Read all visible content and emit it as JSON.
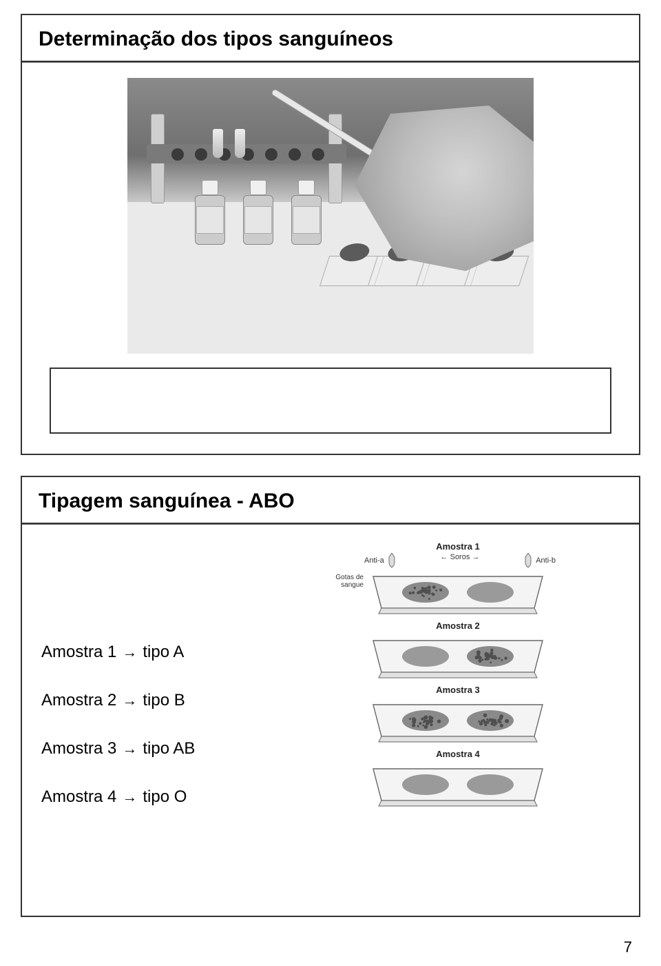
{
  "page_number": "7",
  "slide1": {
    "title": "Determinação dos tipos sanguíneos"
  },
  "slide2": {
    "title": "Tipagem sanguínea - ABO",
    "left_items": [
      {
        "sample": "Amostra 1",
        "type": "tipo A"
      },
      {
        "sample": "Amostra 2",
        "type": "tipo B"
      },
      {
        "sample": "Amostra 3",
        "type": "tipo AB"
      },
      {
        "sample": "Amostra 4",
        "type": "tipo O"
      }
    ],
    "arrow_glyph": "→",
    "diagram": {
      "header_labels": {
        "left": "Anti-a",
        "mid": "Soros",
        "right": "Anti-b"
      },
      "side_label": "Gotas de sangue",
      "samples": [
        {
          "label": "Amostra 1",
          "show_header": true,
          "dish_left": {
            "agglutinated": true
          },
          "dish_right": {
            "agglutinated": false
          }
        },
        {
          "label": "Amostra 2",
          "show_header": false,
          "dish_left": {
            "agglutinated": false
          },
          "dish_right": {
            "agglutinated": true
          }
        },
        {
          "label": "Amostra 3",
          "show_header": false,
          "dish_left": {
            "agglutinated": true
          },
          "dish_right": {
            "agglutinated": true
          }
        },
        {
          "label": "Amostra 4",
          "show_header": false,
          "dish_left": {
            "agglutinated": false
          },
          "dish_right": {
            "agglutinated": false
          }
        }
      ],
      "colors": {
        "plate_stroke": "#666666",
        "plate_fill": "#f4f4f4",
        "blood_smooth": "#9a9a9a",
        "blood_agg_fill": "#8a8a8a",
        "blood_agg_dots": "#4f4f4f",
        "dropper_fill": "#dcdcdc",
        "dropper_stroke": "#555555"
      }
    }
  }
}
